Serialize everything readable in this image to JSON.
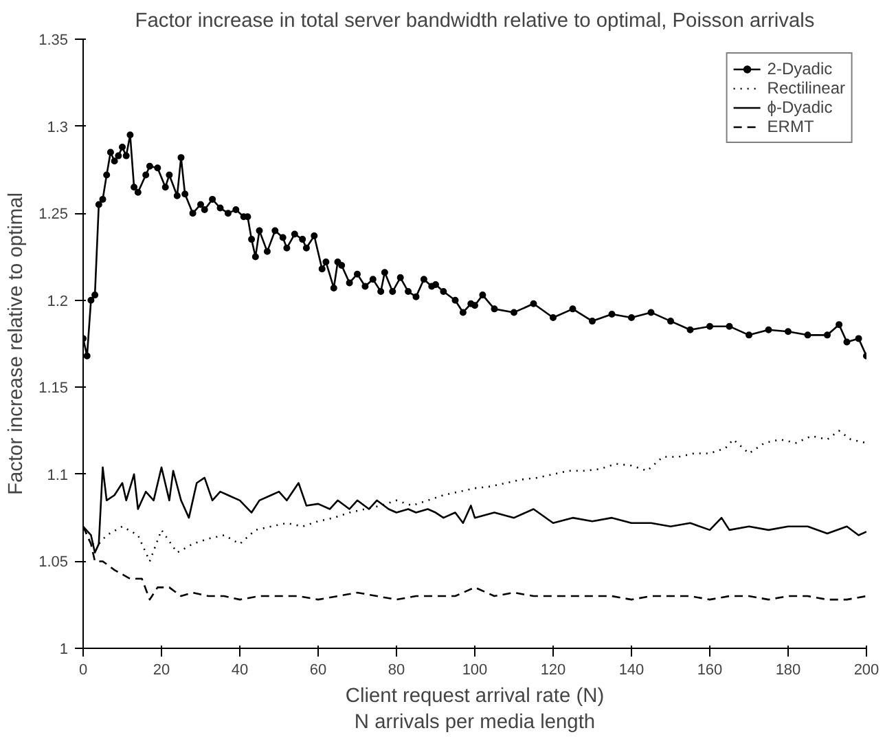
{
  "chart_data": {
    "type": "line",
    "title": "Factor increase in total server bandwidth relative to optimal, Poisson arrivals",
    "xlabel": "Client request arrival rate (N)\nN arrivals per media length",
    "ylabel": "Factor increase relative to optimal",
    "xlim": [
      0,
      200
    ],
    "ylim": [
      1,
      1.35
    ],
    "xticks": [
      0,
      20,
      40,
      60,
      80,
      100,
      120,
      140,
      160,
      180,
      200
    ],
    "yticks": [
      1,
      1.05,
      1.1,
      1.15,
      1.2,
      1.25,
      1.3,
      1.35
    ],
    "grid": false,
    "legend": "top right",
    "series": [
      {
        "name": "2-Dyadic",
        "color": "#000000",
        "line_style": "solid",
        "marker": "circle",
        "x": [
          0,
          1,
          2,
          3,
          4,
          5,
          6,
          7,
          8,
          9,
          10,
          11,
          12,
          13,
          14,
          16,
          17,
          19,
          21,
          22,
          24,
          25,
          26,
          28,
          30,
          31,
          33,
          35,
          37,
          39,
          41,
          42,
          43,
          44,
          45,
          47,
          49,
          51,
          52,
          54,
          56,
          57,
          59,
          61,
          62,
          64,
          65,
          66,
          68,
          70,
          72,
          74,
          76,
          77,
          79,
          81,
          83,
          85,
          87,
          89,
          90,
          92,
          95,
          97,
          99,
          100,
          102,
          105,
          110,
          115,
          120,
          125,
          130,
          135,
          140,
          145,
          150,
          155,
          160,
          165,
          170,
          175,
          180,
          185,
          190,
          193,
          195,
          198,
          200
        ],
        "values": [
          1.178,
          1.168,
          1.2,
          1.203,
          1.255,
          1.258,
          1.272,
          1.285,
          1.28,
          1.283,
          1.288,
          1.283,
          1.295,
          1.265,
          1.262,
          1.272,
          1.277,
          1.276,
          1.265,
          1.272,
          1.26,
          1.282,
          1.261,
          1.25,
          1.255,
          1.252,
          1.258,
          1.253,
          1.25,
          1.252,
          1.248,
          1.248,
          1.235,
          1.225,
          1.24,
          1.228,
          1.24,
          1.236,
          1.23,
          1.238,
          1.235,
          1.23,
          1.237,
          1.218,
          1.222,
          1.207,
          1.222,
          1.22,
          1.21,
          1.215,
          1.208,
          1.212,
          1.205,
          1.216,
          1.205,
          1.213,
          1.205,
          1.202,
          1.212,
          1.208,
          1.209,
          1.205,
          1.2,
          1.193,
          1.198,
          1.197,
          1.203,
          1.195,
          1.193,
          1.198,
          1.19,
          1.195,
          1.188,
          1.192,
          1.19,
          1.193,
          1.188,
          1.183,
          1.185,
          1.185,
          1.18,
          1.183,
          1.182,
          1.18,
          1.18,
          1.186,
          1.176,
          1.178,
          1.168
        ]
      },
      {
        "name": "Rectilinear",
        "color": "#000000",
        "line_style": "dotted",
        "marker": "none",
        "x": [
          0,
          2,
          4,
          6,
          10,
          14,
          17,
          20,
          24,
          28,
          32,
          36,
          40,
          44,
          48,
          52,
          56,
          60,
          64,
          68,
          72,
          76,
          80,
          84,
          88,
          92,
          96,
          100,
          104,
          108,
          112,
          116,
          120,
          124,
          128,
          132,
          136,
          140,
          144,
          148,
          152,
          156,
          160,
          164,
          166,
          170,
          174,
          178,
          182,
          186,
          190,
          193,
          196,
          200
        ],
        "values": [
          1.07,
          1.06,
          1.06,
          1.065,
          1.07,
          1.065,
          1.05,
          1.068,
          1.055,
          1.06,
          1.063,
          1.065,
          1.06,
          1.068,
          1.07,
          1.072,
          1.07,
          1.073,
          1.075,
          1.078,
          1.08,
          1.082,
          1.085,
          1.082,
          1.085,
          1.088,
          1.09,
          1.092,
          1.093,
          1.095,
          1.097,
          1.098,
          1.1,
          1.102,
          1.102,
          1.103,
          1.106,
          1.105,
          1.102,
          1.11,
          1.11,
          1.112,
          1.112,
          1.115,
          1.12,
          1.112,
          1.118,
          1.12,
          1.118,
          1.122,
          1.12,
          1.125,
          1.12,
          1.118
        ]
      },
      {
        "name": "ϕ-Dyadic",
        "color": "#000000",
        "line_style": "solid",
        "marker": "none",
        "x": [
          0,
          2,
          3,
          4,
          5,
          6,
          8,
          10,
          11,
          13,
          14,
          16,
          18,
          20,
          22,
          23,
          25,
          27,
          29,
          31,
          33,
          35,
          37,
          40,
          43,
          45,
          48,
          50,
          52,
          55,
          57,
          60,
          63,
          65,
          68,
          70,
          73,
          75,
          78,
          80,
          83,
          85,
          88,
          90,
          92,
          95,
          97,
          99,
          100,
          105,
          110,
          115,
          120,
          125,
          130,
          135,
          140,
          145,
          150,
          155,
          160,
          163,
          165,
          170,
          175,
          180,
          185,
          190,
          195,
          198,
          200
        ],
        "values": [
          1.07,
          1.065,
          1.055,
          1.06,
          1.104,
          1.085,
          1.088,
          1.095,
          1.085,
          1.1,
          1.08,
          1.09,
          1.085,
          1.104,
          1.085,
          1.102,
          1.085,
          1.075,
          1.095,
          1.098,
          1.085,
          1.09,
          1.088,
          1.085,
          1.078,
          1.085,
          1.088,
          1.09,
          1.085,
          1.095,
          1.082,
          1.083,
          1.08,
          1.085,
          1.08,
          1.085,
          1.08,
          1.085,
          1.08,
          1.078,
          1.08,
          1.078,
          1.08,
          1.078,
          1.075,
          1.078,
          1.072,
          1.082,
          1.075,
          1.078,
          1.075,
          1.08,
          1.072,
          1.075,
          1.073,
          1.075,
          1.072,
          1.072,
          1.07,
          1.072,
          1.068,
          1.075,
          1.068,
          1.07,
          1.068,
          1.07,
          1.07,
          1.066,
          1.07,
          1.065,
          1.067
        ]
      },
      {
        "name": "ERMT",
        "color": "#000000",
        "line_style": "dashed",
        "marker": "none",
        "x": [
          0,
          2,
          3,
          5,
          8,
          12,
          15,
          17,
          19,
          22,
          25,
          28,
          32,
          36,
          40,
          45,
          50,
          55,
          60,
          65,
          70,
          75,
          80,
          85,
          90,
          95,
          100,
          105,
          110,
          115,
          120,
          125,
          130,
          135,
          140,
          145,
          150,
          155,
          160,
          165,
          170,
          175,
          180,
          185,
          190,
          195,
          200
        ],
        "values": [
          1.07,
          1.06,
          1.05,
          1.05,
          1.045,
          1.04,
          1.04,
          1.028,
          1.035,
          1.035,
          1.03,
          1.032,
          1.03,
          1.03,
          1.028,
          1.03,
          1.03,
          1.03,
          1.028,
          1.03,
          1.032,
          1.03,
          1.028,
          1.03,
          1.03,
          1.03,
          1.035,
          1.03,
          1.032,
          1.03,
          1.03,
          1.03,
          1.03,
          1.03,
          1.028,
          1.03,
          1.03,
          1.03,
          1.028,
          1.03,
          1.03,
          1.028,
          1.03,
          1.03,
          1.028,
          1.028,
          1.03
        ]
      }
    ]
  }
}
